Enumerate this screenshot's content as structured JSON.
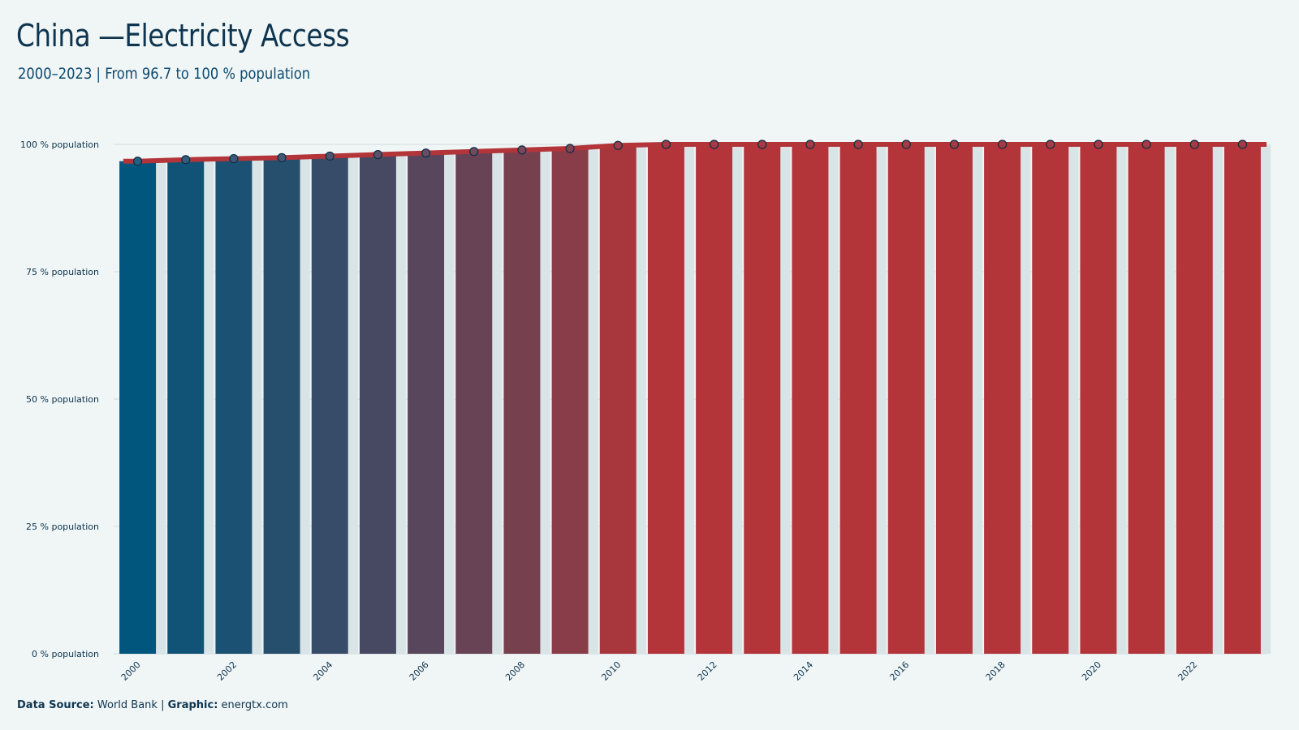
{
  "chart_data": {
    "type": "bar",
    "title": "China —Electricity Access",
    "subtitle": "2000–2023 | From 96.7 to 100 % population",
    "x": [
      2000,
      2001,
      2002,
      2003,
      2004,
      2005,
      2006,
      2007,
      2008,
      2009,
      2010,
      2011,
      2012,
      2013,
      2014,
      2015,
      2016,
      2017,
      2018,
      2019,
      2020,
      2021,
      2022,
      2023
    ],
    "values": [
      96.7,
      97.0,
      97.2,
      97.4,
      97.7,
      98.0,
      98.3,
      98.6,
      98.9,
      99.2,
      99.8,
      100,
      100,
      100,
      100,
      100,
      100,
      100,
      100,
      100,
      100,
      100,
      100,
      100
    ],
    "x_tick_labels": [
      "2000",
      "2002",
      "2004",
      "2006",
      "2008",
      "2010",
      "2012",
      "2014",
      "2016",
      "2018",
      "2020",
      "2022"
    ],
    "y_ticks": [
      0,
      25,
      50,
      75,
      100
    ],
    "y_tick_labels": [
      "0 % population",
      "25 % population",
      "50 % population",
      "75 % population",
      "100 % population"
    ],
    "ylim": [
      0,
      100
    ],
    "xlabel": "",
    "ylabel": "",
    "grid": true,
    "legend": "none",
    "colors": {
      "start": "#00567c",
      "end": "#b33539",
      "ribbon": "#b33539",
      "reference_bar": "#d9e4e7",
      "point_stroke": "#0d2d45",
      "grid": "#c8d3d6",
      "text": "#0d3550"
    }
  },
  "footer": {
    "source_label": "Data Source:",
    "source_value": "World Bank",
    "separator": "|",
    "graphic_label": "Graphic:",
    "graphic_value": "energtx.com"
  }
}
